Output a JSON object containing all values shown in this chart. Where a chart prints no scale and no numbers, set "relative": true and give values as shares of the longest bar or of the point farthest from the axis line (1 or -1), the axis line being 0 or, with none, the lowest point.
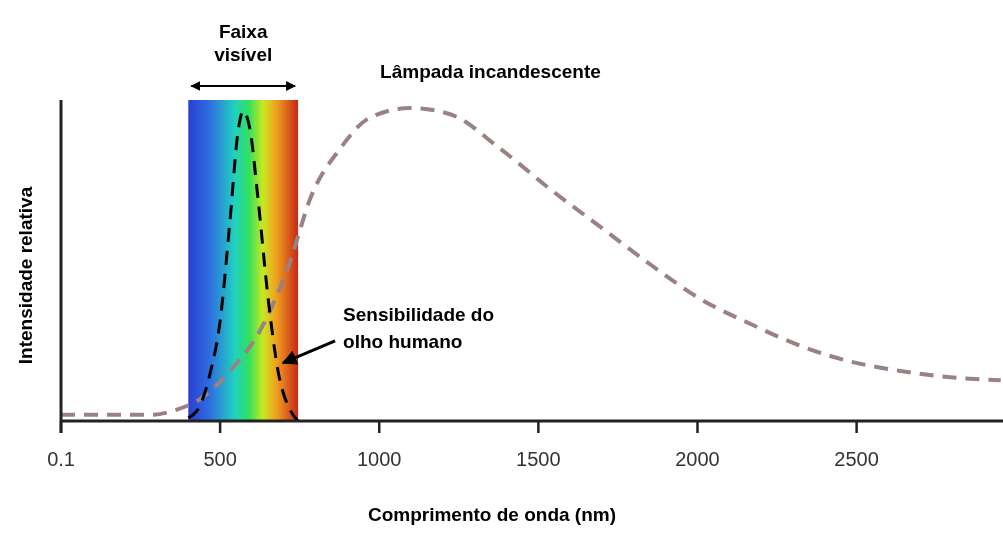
{
  "chart_data": {
    "type": "line",
    "relative": true,
    "xlabel": "Comprimento de onda (nm)",
    "ylabel": "Intensidade relativa",
    "xlim": [
      0,
      2960
    ],
    "xticks": [
      0.1,
      500,
      1000,
      1500,
      2000,
      2500
    ],
    "line_style": "dashed",
    "grid": false,
    "bands": [
      {
        "axis": "x",
        "from": 400,
        "to": 745,
        "label": "Faixa visível"
      }
    ],
    "series": [
      {
        "name": "Lâmpada incandescente",
        "color": "#9a8282",
        "x": [
          0.1,
          150,
          290,
          360,
          437,
          531,
          626,
          720,
          783,
          877,
          972,
          1097,
          1223,
          1380,
          1538,
          1695,
          1852,
          2009,
          2167,
          2324,
          2481,
          2638,
          2795,
          2953
        ],
        "values": [
          0.02,
          0.02,
          0.02,
          0.035,
          0.07,
          0.16,
          0.29,
          0.51,
          0.71,
          0.87,
          0.97,
          1.0,
          0.98,
          0.87,
          0.74,
          0.62,
          0.5,
          0.39,
          0.31,
          0.24,
          0.19,
          0.16,
          0.14,
          0.13
        ]
      },
      {
        "name": "Sensibilidade do olho humano",
        "color": "#000000",
        "x": [
          400,
          437,
          468,
          500,
          531,
          557,
          572,
          594,
          619,
          651,
          682,
          720,
          745
        ],
        "values": [
          0.01,
          0.05,
          0.15,
          0.32,
          0.64,
          0.93,
          0.99,
          0.93,
          0.71,
          0.39,
          0.16,
          0.035,
          0
        ]
      }
    ]
  }
}
